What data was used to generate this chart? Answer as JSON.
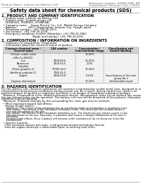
{
  "bg_color": "#ffffff",
  "header_left": "Product Name: Lithium Ion Battery Cell",
  "header_right_line1": "Reference number: RH5RL20AC-RR",
  "header_right_line2": "Established / Revision: Dec.7.2010",
  "title": "Safety data sheet for chemical products (SDS)",
  "section1_title": "1. PRODUCT AND COMPANY IDENTIFICATION",
  "section1_lines": [
    "  • Product name: Lithium Ion Battery Cell",
    "  • Product code: Cylindrical-type cell",
    "    (IH18650U, IH18650L, IH18650A)",
    "  • Company name:    Sanyo Electric Co., Ltd.  Mobile Energy Company",
    "  • Address:            200-1  Kannondani, Sumoto City, Hyogo, Japan",
    "  • Telephone number:  +81-799-26-4111",
    "  • Fax number:  +81-799-26-4129",
    "  • Emergency telephone number (Weekday): +81-799-26-3962",
    "                                   (Night and holiday): +81-799-26-4101"
  ],
  "section2_title": "2. COMPOSITION / INFORMATION ON INGREDIENTS",
  "section2_intro": "  • Substance or preparation: Preparation",
  "section2_sub": "  • Information about the chemical nature of product:",
  "table_col_headers1": [
    "Common chemical name /",
    "CAS number",
    "Concentration /",
    "Classification and"
  ],
  "table_col_headers2": [
    "Several name",
    "",
    "Concentration range",
    "hazard labeling"
  ],
  "table_rows": [
    [
      "Lithium cobalt oxide",
      "-",
      "30-60%",
      ""
    ],
    [
      "(LiMn-Co-Ni)(O2)",
      "",
      "",
      ""
    ],
    [
      "Iron",
      "7439-89-6",
      "15-25%",
      ""
    ],
    [
      "Aluminum",
      "7429-90-5",
      "2-5%",
      ""
    ],
    [
      "Graphite",
      "",
      "",
      ""
    ],
    [
      "(Flake graphite-1)",
      "77782-42-5",
      "10-25%",
      ""
    ],
    [
      "(Artificial graphite-1)",
      "7782-42-5",
      "",
      ""
    ],
    [
      "Copper",
      "7440-50-8",
      "5-15%",
      "Sensitization of the skin"
    ],
    [
      "",
      "",
      "",
      "group No.2"
    ],
    [
      "Organic electrolyte",
      "-",
      "10-20%",
      "Inflammable liquid"
    ]
  ],
  "section3_title": "3. HAZARDS IDENTIFICATION",
  "section3_lines": [
    "For this battery cell, chemical substances are stored in a hermetically sealed metal case, designed to withstand",
    "temperatures and pressure-conditions during normal use. As a result, during normal use, there is no",
    "physical danger of ignition or explosion and there is no danger of hazardous substance leakage.",
    "  However, if exposed to a fire, added mechanical shocks, decomposed, short-circuit without any measure,",
    "the gas release valve can be operated. The battery cell case will be breached of fire-patterns. Hazardous",
    "materials may be released.",
    "  Moreover, if heated strongly by the surrounding fire, toxic gas may be emitted."
  ],
  "section3_bullet1": "  • Most important hazard and effects:",
  "section3_human": "    Human health effects:",
  "section3_human_lines": [
    "      Inhalation: The release of the electrolyte has an anesthesia action and stimulates in respiratory tract.",
    "      Skin contact: The release of the electrolyte stimulates a skin. The electrolyte skin contact causes a",
    "      sore and stimulation on the skin.",
    "      Eye contact: The release of the electrolyte stimulates eyes. The electrolyte eye contact causes a sore",
    "      and stimulation on the eye. Especially, a substance that causes a strong inflammation of the eyes is",
    "      contained.",
    "      Environmental effects: Since a battery cell remains in the environment, do not throw out it into the",
    "      environment."
  ],
  "section3_specific": "  • Specific hazards:",
  "section3_specific_lines": [
    "    If the electrolyte contacts with water, it will generate detrimental hydrogen fluoride.",
    "    Since the organic electrolyte is inflammable liquid, do not bring close to fire."
  ],
  "fs_hdr": 3.0,
  "fs_title": 4.8,
  "fs_sec": 3.8,
  "fs_body": 2.7,
  "fs_table": 2.5
}
